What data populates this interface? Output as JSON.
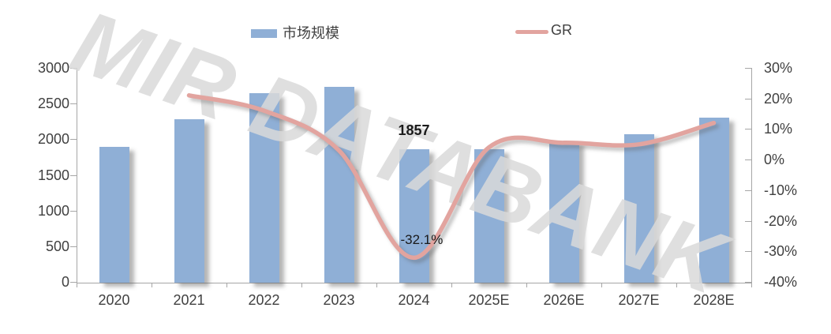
{
  "watermark_text": "MIR DATABANK",
  "colors": {
    "bar": "#8FAFD6",
    "line": "#E2A49F",
    "axis": "#A6A6A6",
    "text": "#404040",
    "watermark": "#DADADA"
  },
  "chart_data": {
    "type": "bar",
    "title": "",
    "xlabel": "",
    "ylabel_left": "",
    "ylabel_right": "",
    "grid": false,
    "legend_position": "top",
    "categories": [
      "2020",
      "2021",
      "2022",
      "2023",
      "2024",
      "2025E",
      "2026E",
      "2027E",
      "2028E"
    ],
    "series": [
      {
        "name": "市场规模",
        "type": "bar",
        "axis": "left",
        "color": "#8FAFD6",
        "values": [
          1890,
          2280,
          2650,
          2730,
          1857,
          1865,
          1970,
          2070,
          2300
        ]
      },
      {
        "name": "GR",
        "type": "line",
        "axis": "right",
        "color": "#E2A49F",
        "values": [
          null,
          21,
          16,
          3,
          -32.1,
          4,
          5.5,
          5,
          12
        ]
      }
    ],
    "left_axis": {
      "min": 0,
      "max": 3000,
      "step": 500,
      "tick_labels": [
        "3000",
        "2500",
        "2000",
        "1500",
        "1000",
        "500",
        "0"
      ]
    },
    "right_axis": {
      "min": -40,
      "max": 30,
      "step": 10,
      "tick_labels": [
        "30%",
        "20%",
        "10%",
        "0%",
        "-10%",
        "-20%",
        "-30%",
        "-40%"
      ]
    },
    "annotations": [
      {
        "text": "1857",
        "series": "市场规模",
        "category": "2024"
      },
      {
        "text": "-32.1%",
        "series": "GR",
        "category": "2024"
      }
    ]
  }
}
